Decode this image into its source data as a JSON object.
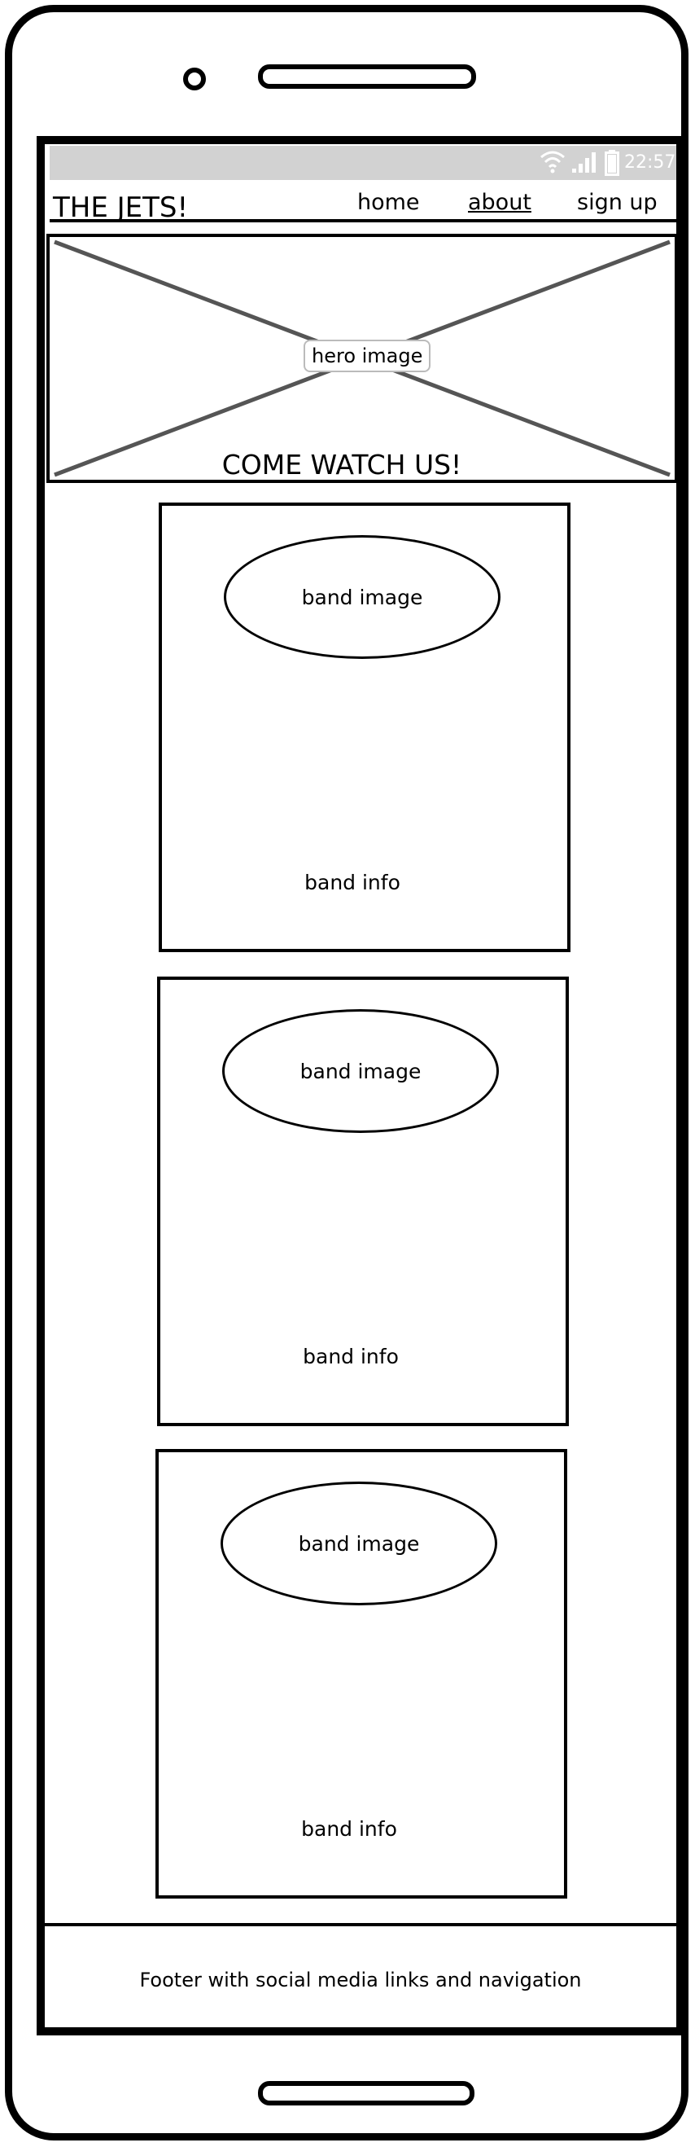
{
  "status_bar": {
    "time": "22:57",
    "icons": [
      "wifi-icon",
      "signal-icon",
      "battery-icon"
    ],
    "background": "#d2d2d2"
  },
  "nav": {
    "brand": "THE JETS!",
    "links": [
      "home",
      "about",
      "sign up"
    ],
    "active": "about"
  },
  "hero": {
    "placeholder_label": "hero image",
    "headline": "COME WATCH US!"
  },
  "band_cards": [
    {
      "image_label": "band image",
      "info_label": "band info"
    },
    {
      "image_label": "band image",
      "info_label": "band info"
    },
    {
      "image_label": "band image",
      "info_label": "band info"
    }
  ],
  "footer": {
    "text": "Footer with social media links and navigation"
  }
}
